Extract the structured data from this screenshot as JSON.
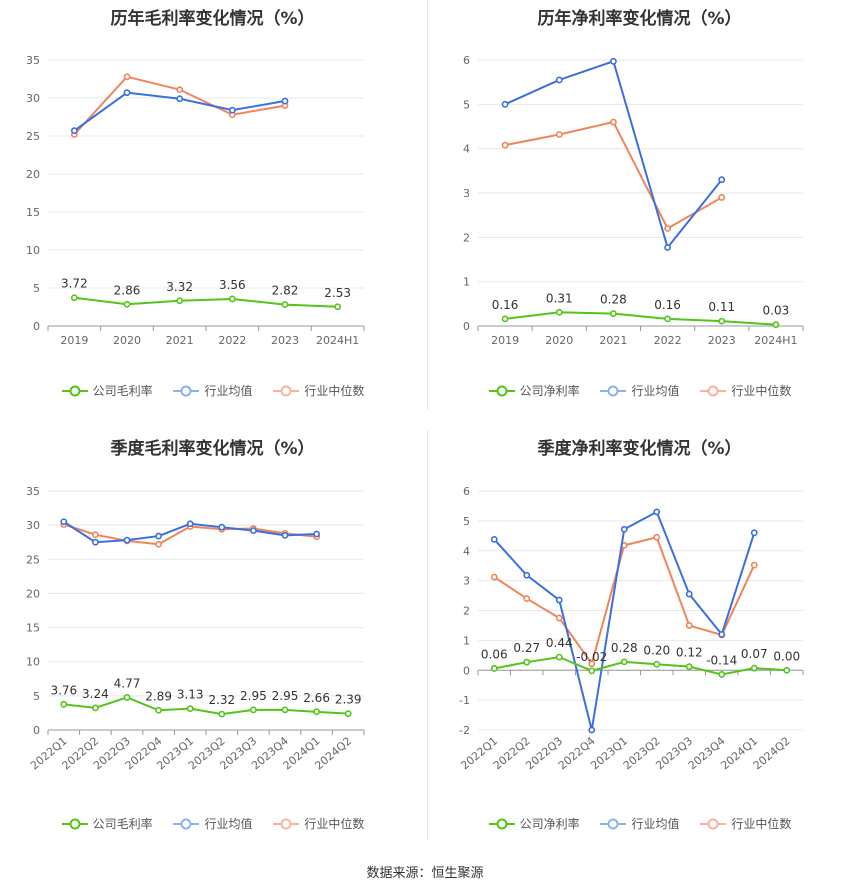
{
  "colors": {
    "company": "#52c41a",
    "avg": "#3a6fe0",
    "median": "#f0845a",
    "grid": "#e8e8e8",
    "axis": "#999999",
    "text": "#666666"
  },
  "charts": [
    {
      "title": "历年毛利率变化情况（%）",
      "legend": [
        "公司毛利率",
        "行业均值",
        "行业中位数"
      ]
    },
    {
      "title": "历年净利率变化情况（%）",
      "legend": [
        "公司净利率",
        "行业均值",
        "行业中位数"
      ]
    },
    {
      "title": "季度毛利率变化情况（%）",
      "legend": [
        "公司毛利率",
        "行业均值",
        "行业中位数"
      ]
    },
    {
      "title": "季度净利率变化情况（%）",
      "legend": [
        "公司净利率",
        "行业均值",
        "行业中位数"
      ]
    }
  ],
  "chart_data": [
    {
      "type": "line",
      "title": "历年毛利率变化情况（%）",
      "categories": [
        "2019",
        "2020",
        "2021",
        "2022",
        "2023",
        "2024H1"
      ],
      "ylim": [
        0,
        35
      ],
      "yticks": [
        0,
        5,
        10,
        15,
        20,
        25,
        30,
        35
      ],
      "grid": true,
      "legend_position": "bottom",
      "series": [
        {
          "name": "公司毛利率",
          "values": [
            3.72,
            2.86,
            3.32,
            3.56,
            2.82,
            2.53
          ],
          "labels": [
            "3.72",
            "2.86",
            "3.32",
            "3.56",
            "2.82",
            "2.53"
          ]
        },
        {
          "name": "行业均值",
          "values": [
            25.7,
            30.7,
            29.9,
            28.4,
            29.6,
            null
          ]
        },
        {
          "name": "行业中位数",
          "values": [
            25.2,
            32.8,
            31.1,
            27.8,
            29.0,
            null
          ]
        }
      ]
    },
    {
      "type": "line",
      "title": "历年净利率变化情况（%）",
      "categories": [
        "2019",
        "2020",
        "2021",
        "2022",
        "2023",
        "2024H1"
      ],
      "ylim": [
        0,
        6
      ],
      "yticks": [
        0,
        1,
        2,
        3,
        4,
        5,
        6
      ],
      "grid": true,
      "legend_position": "bottom",
      "series": [
        {
          "name": "公司净利率",
          "values": [
            0.16,
            0.31,
            0.28,
            0.16,
            0.11,
            0.03
          ],
          "labels": [
            "0.16",
            "0.31",
            "0.28",
            "0.16",
            "0.11",
            "0.03"
          ]
        },
        {
          "name": "行业均值",
          "values": [
            5.0,
            5.55,
            5.97,
            1.77,
            3.3,
            null
          ]
        },
        {
          "name": "行业中位数",
          "values": [
            4.08,
            4.32,
            4.6,
            2.2,
            2.9,
            null
          ]
        }
      ]
    },
    {
      "type": "line",
      "title": "季度毛利率变化情况（%）",
      "categories": [
        "2022Q1",
        "2022Q2",
        "2022Q3",
        "2022Q4",
        "2023Q1",
        "2023Q2",
        "2023Q3",
        "2023Q4",
        "2024Q1",
        "2024Q2"
      ],
      "ylim": [
        0,
        35
      ],
      "yticks": [
        0,
        5,
        10,
        15,
        20,
        25,
        30,
        35
      ],
      "grid": true,
      "legend_position": "bottom",
      "series": [
        {
          "name": "公司毛利率",
          "values": [
            3.76,
            3.24,
            4.77,
            2.89,
            3.13,
            2.32,
            2.95,
            2.95,
            2.66,
            2.39
          ],
          "labels": [
            "3.76",
            "3.24",
            "4.77",
            "2.89",
            "3.13",
            "2.32",
            "2.95",
            "2.95",
            "2.66",
            "2.39"
          ]
        },
        {
          "name": "行业均值",
          "values": [
            30.5,
            27.5,
            27.8,
            28.4,
            30.2,
            29.7,
            29.2,
            28.5,
            28.7,
            null
          ]
        },
        {
          "name": "行业中位数",
          "values": [
            30.1,
            28.6,
            27.7,
            27.2,
            29.8,
            29.4,
            29.5,
            28.8,
            28.3,
            null
          ]
        }
      ]
    },
    {
      "type": "line",
      "title": "季度净利率变化情况（%）",
      "categories": [
        "2022Q1",
        "2022Q2",
        "2022Q3",
        "2022Q4",
        "2023Q1",
        "2023Q2",
        "2023Q3",
        "2023Q4",
        "2024Q1",
        "2024Q2"
      ],
      "ylim": [
        -2,
        6
      ],
      "yticks": [
        -2,
        -1,
        0,
        1,
        2,
        3,
        4,
        5,
        6
      ],
      "grid": true,
      "legend_position": "bottom",
      "series": [
        {
          "name": "公司净利率",
          "values": [
            0.06,
            0.27,
            0.44,
            -0.02,
            0.28,
            0.2,
            0.12,
            -0.14,
            0.07,
            0.0
          ],
          "labels": [
            "0.06",
            "0.27",
            "0.44",
            "-0.02",
            "0.28",
            "0.20",
            "0.12",
            "-0.14",
            "0.07",
            "0.00"
          ]
        },
        {
          "name": "行业均值",
          "values": [
            4.38,
            3.18,
            2.35,
            -2.0,
            4.72,
            5.3,
            2.55,
            1.2,
            4.6,
            null
          ]
        },
        {
          "name": "行业中位数",
          "values": [
            3.12,
            2.4,
            1.75,
            0.22,
            4.18,
            4.45,
            1.5,
            1.18,
            3.52,
            null
          ]
        }
      ]
    }
  ],
  "source": "数据来源：恒生聚源"
}
